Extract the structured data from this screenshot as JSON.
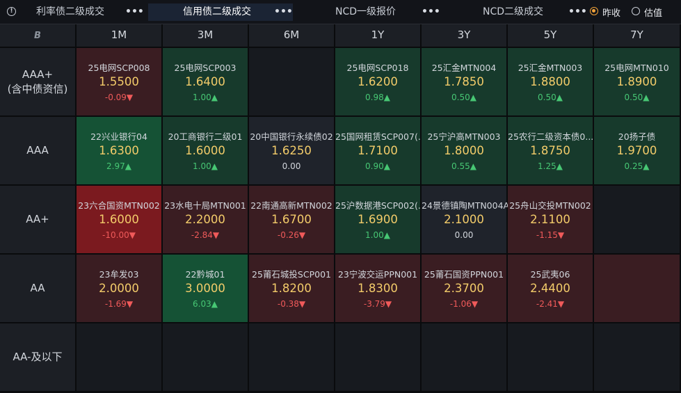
{
  "tabs": [
    {
      "label": "利率债二级成交",
      "more": "•••"
    },
    {
      "label": "信用债二级成交",
      "more": "•••"
    },
    {
      "label": "NCD一级报价",
      "more": "•••"
    },
    {
      "label": "NCD二级成交",
      "more": "•••"
    }
  ],
  "radios": [
    {
      "label": "昨收",
      "selected": true
    },
    {
      "label": "估值",
      "selected": false
    }
  ],
  "corner_logo": "B",
  "columns": [
    "1M",
    "3M",
    "6M",
    "1Y",
    "3Y",
    "5Y",
    "7Y"
  ],
  "rows": [
    {
      "label": "AAA+",
      "sub": "(含中债资信)"
    },
    {
      "label": "AAA",
      "sub": ""
    },
    {
      "label": "AA+",
      "sub": ""
    },
    {
      "label": "AA",
      "sub": ""
    },
    {
      "label": "AA-及以下",
      "sub": ""
    }
  ],
  "cells": [
    [
      {
        "name": "25电网SCP008",
        "price": "1.5500",
        "change": "-0.09▼",
        "dir": "down",
        "tone": "c-red"
      },
      {
        "name": "25电网SCP003",
        "price": "1.6400",
        "change": "1.00▲",
        "dir": "up",
        "tone": "c-green"
      },
      null,
      {
        "name": "25电网SCP018",
        "price": "1.6200",
        "change": "0.98▲",
        "dir": "up",
        "tone": "c-green"
      },
      {
        "name": "25汇金MTN004",
        "price": "1.7850",
        "change": "0.50▲",
        "dir": "up",
        "tone": "c-green"
      },
      {
        "name": "25汇金MTN003",
        "price": "1.8800",
        "change": "0.50▲",
        "dir": "up",
        "tone": "c-green"
      },
      {
        "name": "25电网MTN010",
        "price": "1.8900",
        "change": "0.50▲",
        "dir": "up",
        "tone": "c-green"
      }
    ],
    [
      {
        "name": "22兴业银行04",
        "price": "1.6300",
        "change": "2.97▲",
        "dir": "up",
        "tone": "c-green2"
      },
      {
        "name": "20工商银行二级01",
        "price": "1.6000",
        "change": "1.00▲",
        "dir": "up",
        "tone": "c-green"
      },
      {
        "name": "20中国银行永续债02",
        "price": "1.6250",
        "change": "0.00",
        "dir": "flat",
        "tone": "c-neutral"
      },
      {
        "name": "25国网租赁SCP007(...",
        "price": "1.7100",
        "change": "0.90▲",
        "dir": "up",
        "tone": "c-green"
      },
      {
        "name": "25宁沪高MTN003",
        "price": "1.8000",
        "change": "0.55▲",
        "dir": "up",
        "tone": "c-green"
      },
      {
        "name": "25农行二级资本债0...",
        "price": "1.8750",
        "change": "1.25▲",
        "dir": "up",
        "tone": "c-green"
      },
      {
        "name": "20扬子债",
        "price": "1.9700",
        "change": "0.25▲",
        "dir": "up",
        "tone": "c-green"
      }
    ],
    [
      {
        "name": "23六合国资MTN002",
        "price": "1.6000",
        "change": "-10.00▼",
        "dir": "down",
        "tone": "c-red2"
      },
      {
        "name": "23水电十局MTN001",
        "price": "2.2000",
        "change": "-2.84▼",
        "dir": "down",
        "tone": "c-red"
      },
      {
        "name": "22南通高新MTN002",
        "price": "1.6700",
        "change": "-0.26▼",
        "dir": "down",
        "tone": "c-red"
      },
      {
        "name": "25沪数据港SCP002(...",
        "price": "1.6900",
        "change": "1.00▲",
        "dir": "up",
        "tone": "c-green"
      },
      {
        "name": "24景德镇陶MTN004A",
        "price": "2.1000",
        "change": "0.00",
        "dir": "flat",
        "tone": "c-neutral"
      },
      {
        "name": "25舟山交投MTN002",
        "price": "2.1100",
        "change": "-1.15▼",
        "dir": "down",
        "tone": "c-red"
      },
      null
    ],
    [
      {
        "name": "23牟发03",
        "price": "2.0000",
        "change": "-1.69▼",
        "dir": "down",
        "tone": "c-red"
      },
      {
        "name": "22黔城01",
        "price": "3.0000",
        "change": "6.03▲",
        "dir": "up",
        "tone": "c-green2"
      },
      {
        "name": "25莆石城投SCP001",
        "price": "1.8200",
        "change": "-0.38▼",
        "dir": "down",
        "tone": "c-red"
      },
      {
        "name": "23宁波交运PPN001",
        "price": "1.8300",
        "change": "-3.79▼",
        "dir": "down",
        "tone": "c-red"
      },
      {
        "name": "25莆石国资PPN001",
        "price": "2.3700",
        "change": "-1.06▼",
        "dir": "down",
        "tone": "c-red"
      },
      {
        "name": "25武夷06",
        "price": "2.4400",
        "change": "-2.41▼",
        "dir": "down",
        "tone": "c-red"
      },
      {
        "name": "",
        "price": "",
        "change": "",
        "dir": "flat",
        "tone": "c-red"
      }
    ],
    [
      null,
      null,
      null,
      null,
      null,
      null,
      null
    ]
  ]
}
